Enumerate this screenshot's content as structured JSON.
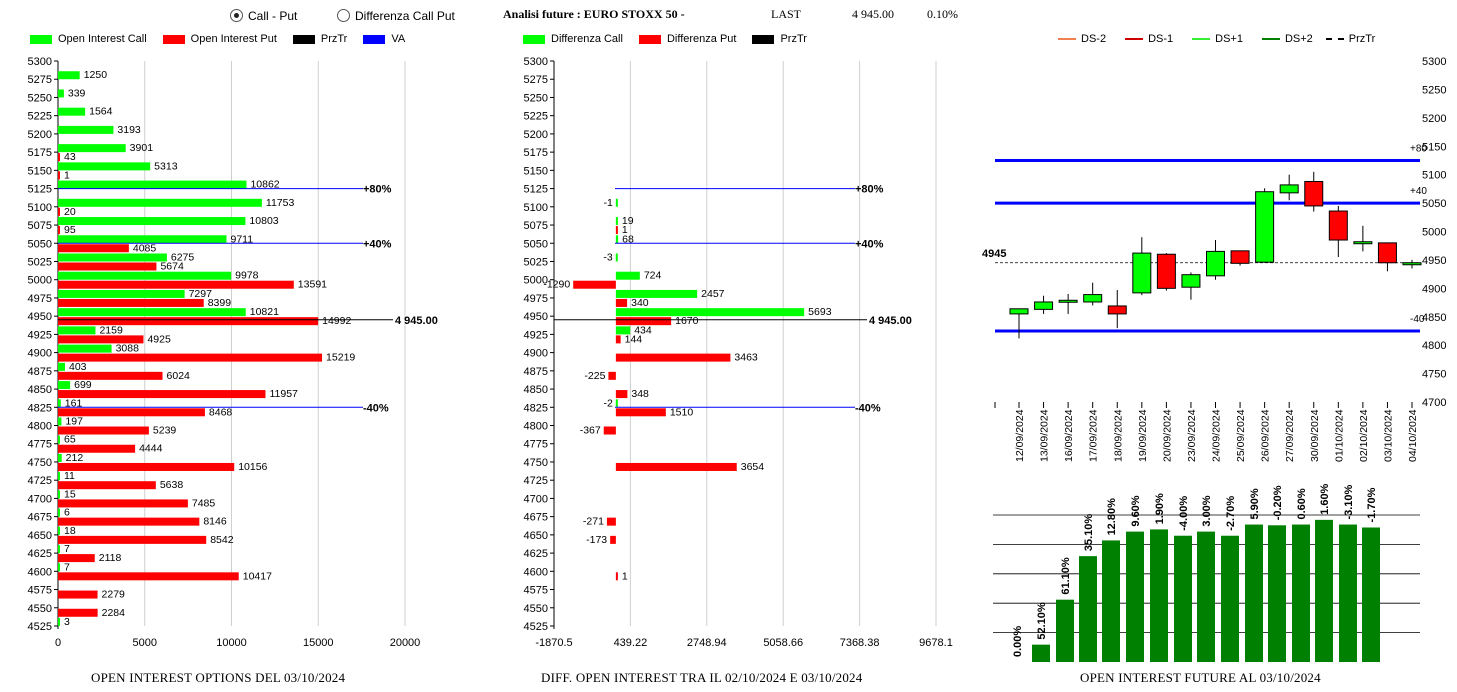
{
  "header": {
    "radio_options": [
      {
        "label": "Call - Put",
        "selected": true
      },
      {
        "label": "Differenza Call Put",
        "selected": false
      }
    ],
    "title": "Analisi future : EURO STOXX 50 -",
    "last_label": "LAST",
    "last_value": "4 945.00",
    "last_change": "0.10%"
  },
  "colors": {
    "call": "#00ff00",
    "put": "#ff0000",
    "price": "#000000",
    "va": "#0000ff",
    "future_bar": "#008000",
    "ds_minus2": "#f08050",
    "ds_minus1": "#cc0000",
    "ds_plus1": "#33ee33",
    "ds_plus2": "#008000"
  },
  "panels": {
    "left_footer": "OPEN INTEREST OPTIONS DEL 03/10/2024",
    "middle_footer": "DIFF. OPEN INTEREST TRA IL 02/10/2024 E 03/10/2024",
    "right_footer": "OPEN INTEREST FUTURE AL 03/10/2024"
  },
  "chart_data": [
    {
      "type": "bar",
      "orientation": "horizontal",
      "legend": [
        "Open Interest Call",
        "Open Interest Put",
        "PrzTr",
        "VA"
      ],
      "legend_placement": "top",
      "strikes": [
        "5300",
        "5275",
        "5250",
        "5225",
        "5200",
        "5175",
        "5150",
        "5125",
        "5100",
        "5075",
        "5050",
        "5025",
        "5000",
        "4975",
        "4950",
        "4925",
        "4900",
        "4875",
        "4850",
        "4825",
        "4800",
        "4775",
        "4750",
        "4725",
        "4700",
        "4675",
        "4650",
        "4625",
        "4600",
        "4575",
        "4550",
        "4525"
      ],
      "series": [
        {
          "name": "Open Interest Call",
          "values": [
            null,
            1250,
            339,
            1564,
            3193,
            3901,
            5313,
            10862,
            11753,
            10803,
            9711,
            6275,
            9978,
            7297,
            10821,
            2159,
            3088,
            403,
            699,
            161,
            197,
            65,
            212,
            11,
            15,
            6,
            18,
            7,
            7,
            null,
            null,
            3
          ]
        },
        {
          "name": "Open Interest Put",
          "values": [
            null,
            null,
            null,
            null,
            null,
            43,
            1,
            null,
            20,
            95,
            4085,
            5674,
            13591,
            8399,
            14992,
            4925,
            15219,
            6024,
            11957,
            8468,
            5239,
            4444,
            10156,
            5638,
            7485,
            8146,
            8542,
            2118,
            10417,
            2279,
            2284,
            null
          ]
        }
      ],
      "xlim": [
        0,
        20000
      ],
      "xticks": [
        "0",
        "5000",
        "10000",
        "15000",
        "20000"
      ],
      "price_line": {
        "strike": 4945,
        "label": "4 945.00"
      },
      "va_lines": [
        {
          "strike": 5125,
          "label": "+80%"
        },
        {
          "strike": 5050,
          "label": "+40%"
        },
        {
          "strike": 4825,
          "label": "-40%"
        }
      ]
    },
    {
      "type": "bar",
      "orientation": "horizontal",
      "legend": [
        "Differenza Call",
        "Differenza Put",
        "PrzTr"
      ],
      "legend_placement": "top",
      "strikes": [
        "5300",
        "5275",
        "5250",
        "5225",
        "5200",
        "5175",
        "5150",
        "5125",
        "5100",
        "5075",
        "5050",
        "5025",
        "5000",
        "4975",
        "4950",
        "4925",
        "4900",
        "4875",
        "4850",
        "4825",
        "4800",
        "4775",
        "4750",
        "4725",
        "4700",
        "4675",
        "4650",
        "4625",
        "4600",
        "4575",
        "4550",
        "4525"
      ],
      "series": [
        {
          "name": "Differenza Call",
          "values": [
            null,
            null,
            null,
            null,
            null,
            null,
            null,
            null,
            -1,
            19,
            68,
            -3,
            724,
            2457,
            5693,
            434,
            null,
            null,
            null,
            -2,
            null,
            null,
            null,
            null,
            null,
            null,
            null,
            null,
            null,
            null,
            null,
            null
          ]
        },
        {
          "name": "Differenza Put",
          "values": [
            null,
            null,
            null,
            null,
            null,
            null,
            null,
            null,
            null,
            1,
            null,
            null,
            -1290,
            340,
            1670,
            144,
            3463,
            -225,
            348,
            1510,
            -367,
            null,
            3654,
            null,
            null,
            -271,
            -173,
            null,
            1,
            null,
            null,
            null
          ]
        }
      ],
      "xlim": [
        -1870.5,
        9678.1
      ],
      "xticks": [
        "-1870.5",
        "439.22",
        "2748.94",
        "5058.66",
        "7368.38",
        "9678.1"
      ],
      "price_line": {
        "strike": 4945,
        "label": "4 945.00"
      },
      "va_lines": [
        {
          "strike": 5125,
          "label": "+80%"
        },
        {
          "strike": 5050,
          "label": "+40%"
        },
        {
          "strike": 4825,
          "label": "-40%"
        }
      ]
    },
    {
      "type": "candlestick",
      "legend": [
        "DS-2",
        "DS-1",
        "DS+1",
        "DS+2",
        "PrzTr"
      ],
      "legend_placement": "top",
      "dates": [
        "12/09/2024",
        "13/09/2024",
        "16/09/2024",
        "17/09/2024",
        "18/09/2024",
        "19/09/2024",
        "20/09/2024",
        "23/09/2024",
        "24/09/2024",
        "25/09/2024",
        "26/09/2024",
        "27/09/2024",
        "30/09/2024",
        "01/10/2024",
        "02/10/2024",
        "03/10/2024",
        "04/10/2024"
      ],
      "candles": [
        {
          "open": 4855,
          "high": 4862,
          "low": 4812,
          "close": 4864
        },
        {
          "open": 4863,
          "high": 4887,
          "low": 4855,
          "close": 4876
        },
        {
          "open": 4876,
          "high": 4890,
          "low": 4855,
          "close": 4879
        },
        {
          "open": 4876,
          "high": 4910,
          "low": 4870,
          "close": 4889
        },
        {
          "open": 4869,
          "high": 4897,
          "low": 4830,
          "close": 4855
        },
        {
          "open": 4892,
          "high": 4990,
          "low": 4888,
          "close": 4962
        },
        {
          "open": 4960,
          "high": 4962,
          "low": 4896,
          "close": 4900
        },
        {
          "open": 4902,
          "high": 4928,
          "low": 4880,
          "close": 4924
        },
        {
          "open": 4922,
          "high": 4985,
          "low": 4915,
          "close": 4965
        },
        {
          "open": 4966,
          "high": 4965,
          "low": 4940,
          "close": 4944
        },
        {
          "open": 4946,
          "high": 5076,
          "low": 4945,
          "close": 5070
        },
        {
          "open": 5068,
          "high": 5100,
          "low": 5055,
          "close": 5082
        },
        {
          "open": 5088,
          "high": 5105,
          "low": 5035,
          "close": 5045
        },
        {
          "open": 5036,
          "high": 5045,
          "low": 4955,
          "close": 4985
        },
        {
          "open": 4982,
          "high": 5010,
          "low": 4965,
          "close": 4982
        },
        {
          "open": 4980,
          "high": 4980,
          "low": 4930,
          "close": 4945
        },
        {
          "open": 4945,
          "high": 4950,
          "low": 4935,
          "close": 4945
        }
      ],
      "ylim": [
        4700,
        5300
      ],
      "yticks": [
        "4700",
        "4750",
        "4800",
        "4850",
        "4900",
        "4950",
        "5000",
        "5050",
        "5100",
        "5150",
        "5200",
        "5250",
        "5300"
      ],
      "level_lines": [
        {
          "value": 5125,
          "label": "+80"
        },
        {
          "value": 5050,
          "label": "+40"
        },
        {
          "value": 4825,
          "label": "-40"
        }
      ],
      "price_line": {
        "value": 4945,
        "label": "4945"
      }
    },
    {
      "type": "bar",
      "categories": [
        "12/09/2024",
        "13/09/2024",
        "16/09/2024",
        "17/09/2024",
        "18/09/2024",
        "19/09/2024",
        "20/09/2024",
        "23/09/2024",
        "24/09/2024",
        "25/09/2024",
        "26/09/2024",
        "27/09/2024",
        "30/09/2024",
        "01/10/2024",
        "02/10/2024",
        "03/10/2024",
        "04/10/2024"
      ],
      "labels": [
        "0.00%",
        "52.10%",
        "61.10%",
        "35.10%",
        "12.80%",
        "9.60%",
        "1.90%",
        "-4.00%",
        "3.00%",
        "-2.70%",
        "5.90%",
        "-0.20%",
        "0.60%",
        "1.60%",
        "-3.10%",
        "-1.70%"
      ],
      "values": [
        0.0,
        52.1,
        61.1,
        35.1,
        12.8,
        9.6,
        1.9,
        -4.0,
        3.0,
        -2.7,
        5.9,
        -0.2,
        0.6,
        1.6,
        -3.1,
        -1.7
      ],
      "relative_heights": [
        0,
        0.118,
        0.424,
        0.72,
        0.827,
        0.887,
        0.902,
        0.859,
        0.887,
        0.859,
        0.935,
        0.93,
        0.935,
        0.967,
        0.935,
        0.915
      ],
      "grid": true
    }
  ]
}
